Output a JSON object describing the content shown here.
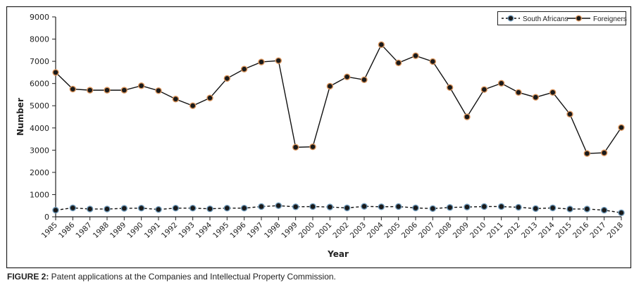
{
  "chart_data": {
    "type": "line",
    "title": "",
    "xlabel": "Year",
    "ylabel": "Number",
    "ylim": [
      0,
      9000
    ],
    "yticks": [
      0,
      1000,
      2000,
      3000,
      4000,
      5000,
      6000,
      7000,
      8000,
      9000
    ],
    "grid": false,
    "legend_position": "top-right",
    "x": [
      1985,
      1986,
      1987,
      1988,
      1989,
      1990,
      1991,
      1992,
      1993,
      1994,
      1995,
      1996,
      1997,
      1998,
      1999,
      2000,
      2001,
      2002,
      2003,
      2004,
      2005,
      2006,
      2007,
      2008,
      2009,
      2010,
      2011,
      2012,
      2013,
      2014,
      2015,
      2016,
      2017,
      2018
    ],
    "series": [
      {
        "name": "South Africans",
        "line_style": "dashed",
        "marker_edge_color": "#6e98b8",
        "marker_fill_color": "#1a1a1a",
        "values": [
          300,
          400,
          350,
          350,
          380,
          390,
          330,
          390,
          390,
          360,
          390,
          390,
          460,
          500,
          450,
          460,
          440,
          400,
          470,
          450,
          460,
          400,
          370,
          420,
          440,
          460,
          460,
          430,
          370,
          400,
          350,
          350,
          300,
          180
        ]
      },
      {
        "name": "Foreigners",
        "line_style": "solid",
        "marker_edge_color": "#d9935a",
        "marker_fill_color": "#1a1a1a",
        "values": [
          6500,
          5750,
          5700,
          5700,
          5700,
          5900,
          5680,
          5300,
          5000,
          5350,
          6230,
          6650,
          6970,
          7030,
          3130,
          3150,
          5880,
          6300,
          6170,
          7750,
          6930,
          7250,
          6990,
          5820,
          4500,
          5730,
          6010,
          5600,
          5380,
          5600,
          4620,
          2850,
          2880,
          4020
        ]
      }
    ]
  },
  "caption": {
    "label": "FIGURE 2:",
    "text": " Patent applications at the Companies and Intellectual Property Commission."
  }
}
